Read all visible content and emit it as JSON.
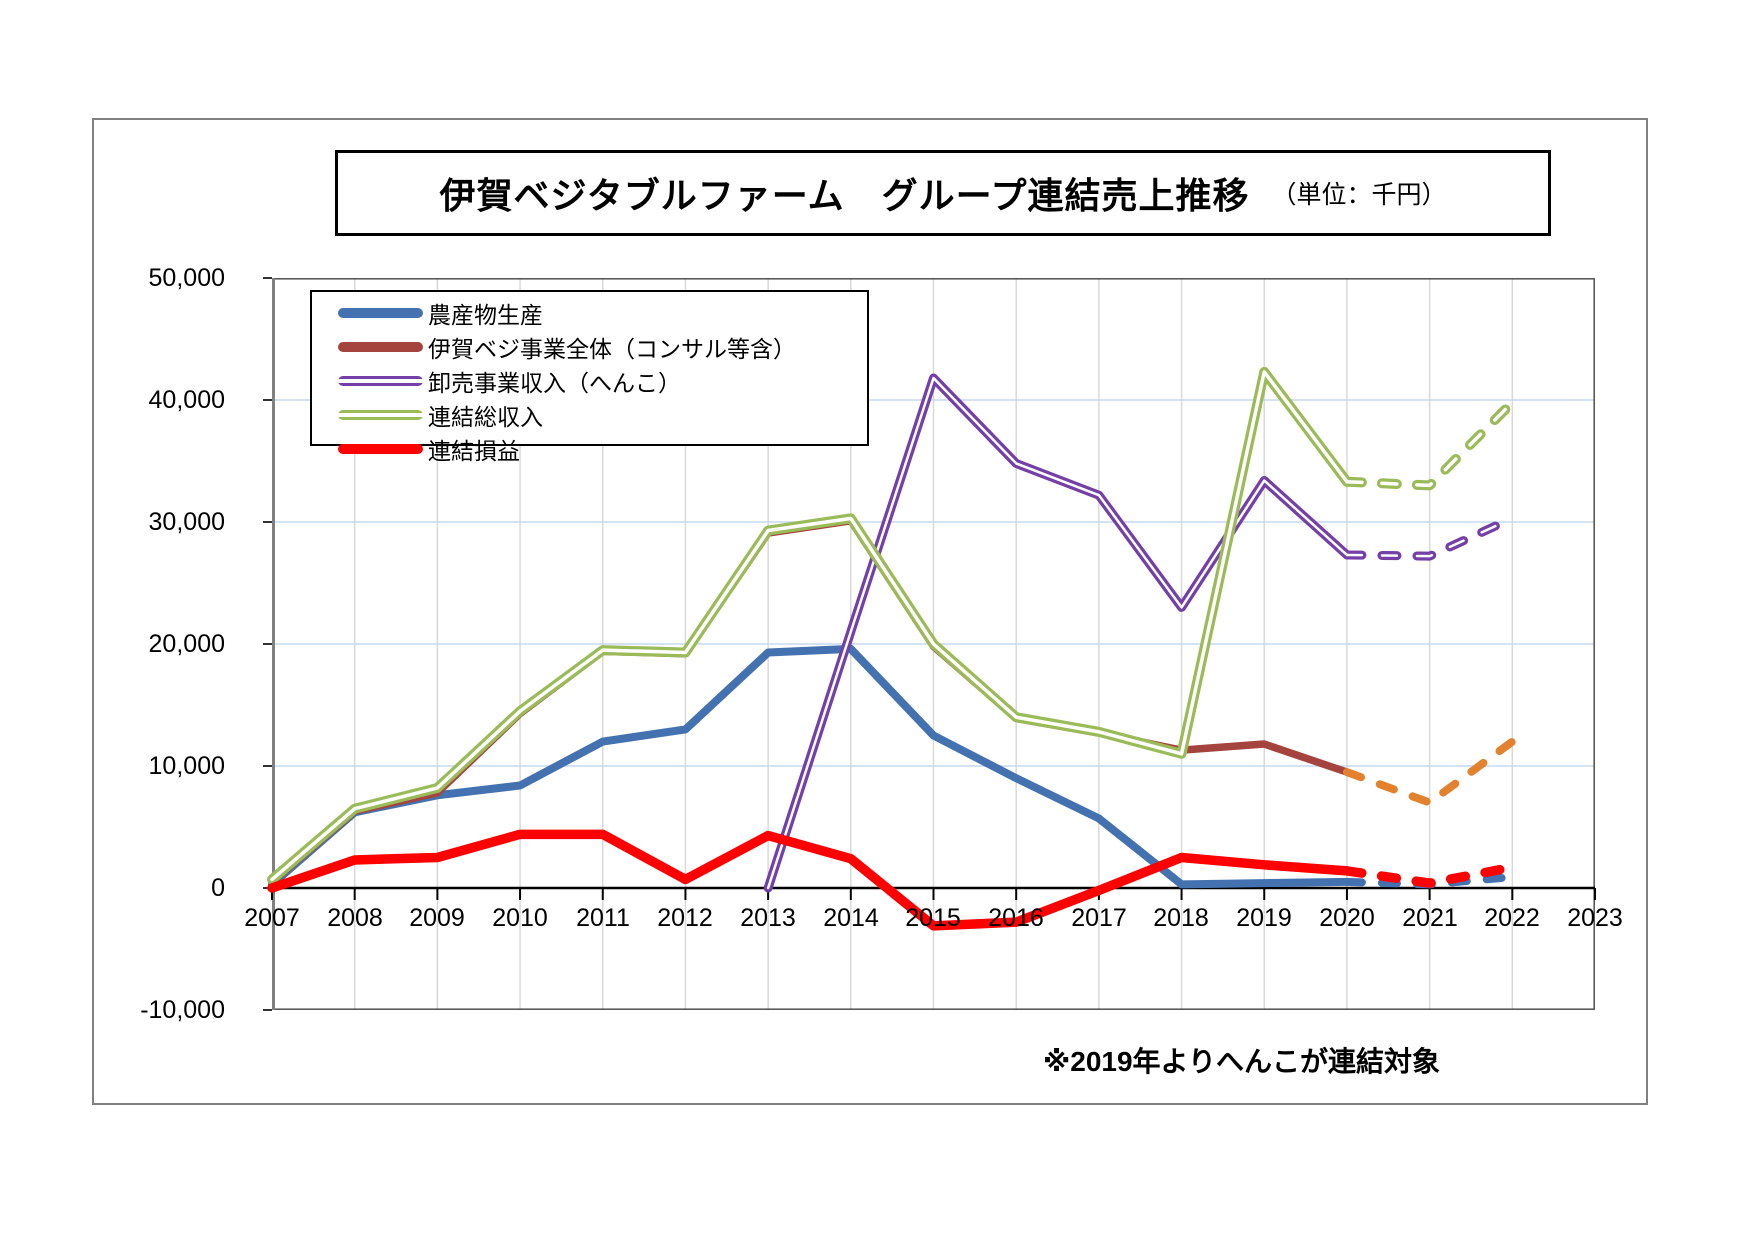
{
  "title": {
    "main": "伊賀ベジタブルファーム　グループ連結売上推移",
    "unit": "（単位：千円）"
  },
  "note": "※2019年よりへんこが連結対象",
  "y_axis": {
    "labels": [
      "50,000",
      "40,000",
      "30,000",
      "20,000",
      "10,000",
      "0",
      "-10,000"
    ],
    "max": 50000,
    "min": -10000,
    "step": 10000
  },
  "x_axis": {
    "labels": [
      "2007",
      "2008",
      "2009",
      "2010",
      "2011",
      "2012",
      "2013",
      "2014",
      "2015",
      "2016",
      "2017",
      "2018",
      "2019",
      "2020",
      "2021",
      "2022",
      "2023"
    ]
  },
  "colors": {
    "blue": "#4472B0",
    "dark_red": "#A5443E",
    "orange": "#E2822E",
    "purple": "#7440A8",
    "green": "#9BBB59",
    "red": "#FF0000",
    "grid_v": "#D9D9D9",
    "grid_h": "#C7D8EF",
    "axis": "#000000",
    "plot_border": "#595959"
  },
  "legend": {
    "items": [
      {
        "label": "農産物生産",
        "color": "#4472B0",
        "outline": false
      },
      {
        "label": "伊賀ベジ事業全体（コンサル等含）",
        "color": "#A5443E",
        "outline": false
      },
      {
        "label": "卸売事業収入（へんこ）",
        "color": "#7440A8",
        "outline": true
      },
      {
        "label": "連結総収入",
        "color": "#9BBB59",
        "outline": true
      },
      {
        "label": "連結損益",
        "color": "#FF0000",
        "outline": false
      }
    ]
  },
  "chart_data": {
    "type": "line",
    "title": "伊賀ベジタブルファーム　グループ連結売上推移",
    "unit_label": "千円",
    "values_unit": "thousands of yen",
    "x": [
      2007,
      2008,
      2009,
      2010,
      2011,
      2012,
      2013,
      2014,
      2015,
      2016,
      2017,
      2018,
      2019,
      2020,
      2021,
      2022
    ],
    "x_axis_end": 2023,
    "ylim": [
      -10000,
      50000
    ],
    "grid": true,
    "legend_position": "top-left-inside",
    "dashed_note": "values from 2020 onward drawn as dashed forecast",
    "series": [
      {
        "key": "agri-production",
        "name": "農産物生産",
        "color": "#4472B0",
        "width": 8,
        "outline": false,
        "dash_from": 2020,
        "in_legend": true,
        "values": [
          300,
          6200,
          7600,
          8400,
          12000,
          13000,
          19300,
          19600,
          12500,
          9000,
          5700,
          300,
          400,
          500,
          300,
          900
        ]
      },
      {
        "key": "igaveg-business-total",
        "name": "伊賀ベジ事業全体（コンサル等含）",
        "color": "#A5443E",
        "width": 7.5,
        "outline": false,
        "dash_from": null,
        "in_legend": true,
        "values": [
          500,
          6300,
          7800,
          14300,
          19400,
          19200,
          29100,
          30100,
          19800,
          13900,
          12700,
          11300,
          11800,
          9500,
          null,
          null
        ]
      },
      {
        "key": "igaveg-dashed-continuation",
        "name": "",
        "color": "#E2822E",
        "width": 8,
        "outline": false,
        "dash_from": 2020,
        "in_legend": false,
        "values": [
          null,
          null,
          null,
          null,
          null,
          null,
          null,
          null,
          null,
          null,
          null,
          null,
          null,
          9500,
          7000,
          12000
        ]
      },
      {
        "key": "wholesale-henko",
        "name": "卸売事業収入（へんこ）",
        "color": "#7440A8",
        "width": 9,
        "outline": true,
        "inner_width": 2.5,
        "dash_from": 2020,
        "in_legend": true,
        "values": [
          null,
          null,
          null,
          null,
          null,
          null,
          0,
          21000,
          41800,
          34800,
          32200,
          23000,
          33400,
          27300,
          27200,
          30300
        ]
      },
      {
        "key": "consolidated-revenue",
        "name": "連結総収入",
        "color": "#9BBB59",
        "width": 10,
        "outline": true,
        "inner_width": 3.5,
        "dash_from": 2020,
        "in_legend": true,
        "values": [
          700,
          6500,
          8200,
          14500,
          19500,
          19300,
          29300,
          30300,
          20000,
          14000,
          12800,
          11000,
          42300,
          33300,
          33000,
          39800
        ]
      },
      {
        "key": "consolidated-profit-loss",
        "name": "連結損益",
        "color": "#FF0000",
        "width": 9.5,
        "outline": false,
        "dash_from": 2020,
        "in_legend": true,
        "values": [
          0,
          2300,
          2500,
          4400,
          4400,
          700,
          4300,
          2400,
          -3100,
          -2800,
          -200,
          2500,
          1900,
          1400,
          400,
          1700
        ]
      }
    ]
  }
}
